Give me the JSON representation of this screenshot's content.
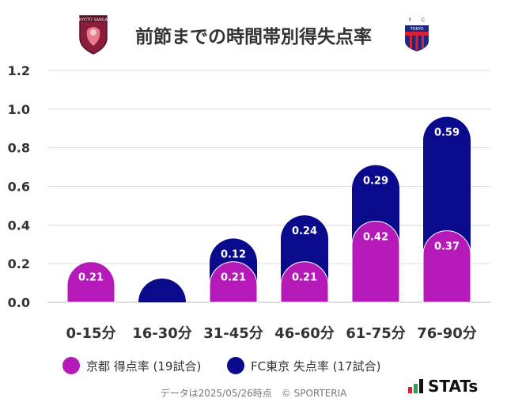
{
  "title": "前節までの時間帯別得失点率",
  "chart_data": {
    "type": "bar",
    "stacked": true,
    "categories": [
      "0-15分",
      "16-30分",
      "31-45分",
      "46-60分",
      "61-75分",
      "76-90分"
    ],
    "series": [
      {
        "name": "京都 得点率 (19試合)",
        "color": "#b51ab8",
        "values": [
          0.21,
          0.0,
          0.21,
          0.21,
          0.42,
          0.37
        ]
      },
      {
        "name": "FC東京 失点率 (17試合)",
        "color": "#0a0a8c",
        "values": [
          0.0,
          0.0,
          0.12,
          0.24,
          0.29,
          0.59
        ]
      }
    ],
    "ylim": [
      0,
      1.2
    ],
    "yticks": [
      "0.0",
      "0.2",
      "0.4",
      "0.6",
      "0.8",
      "1.0",
      "1.2"
    ],
    "grid": true
  },
  "legend": {
    "home": {
      "label": "京都 得点率 (19試合)",
      "color": "#b51ab8"
    },
    "away": {
      "label": "FC東京 失点率 (17試合)",
      "color": "#0a0a8c"
    }
  },
  "footer": "データは2025/05/26時点　© SPORTERIA",
  "logos": {
    "kyoto": {
      "text": "KYOTO SANGA",
      "icon": "kyoto-sanga-crest-icon"
    },
    "fctokyo": {
      "text": "TOKYO",
      "icon": "fc-tokyo-crest-icon"
    }
  },
  "brand": {
    "text": "STATs"
  }
}
